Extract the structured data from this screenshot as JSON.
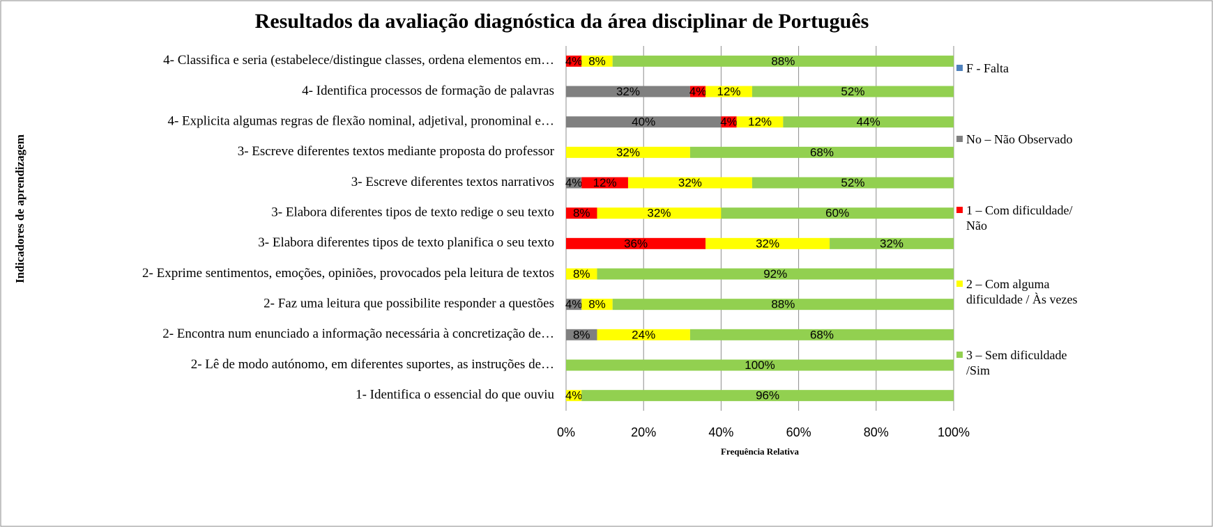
{
  "chart_data": {
    "type": "stacked-bar-horizontal",
    "title": "Resultados da avaliação diagnóstica da área disciplinar de Português",
    "x_label": "Frequência Relativa",
    "y_label": "Indicadores de aprendizagem",
    "categories": [
      "4- Classifica e seria (estabelece/distingue classes, ordena elementos em…",
      "4- Identifica processos de formação de palavras",
      "4- Explicita algumas regras de flexão nominal, adjetival, pronominal e…",
      "3- Escreve diferentes textos mediante proposta do professor",
      "3- Escreve diferentes textos narrativos",
      "3- Elabora diferentes tipos de texto redige o seu texto",
      "3- Elabora diferentes tipos de texto planifica o seu texto",
      "2- Exprime sentimentos, emoções, opiniões, provocados pela leitura de textos",
      "2- Faz uma leitura que possibilite responder a questões",
      "2- Encontra num enunciado a informação necessária à concretização de…",
      "2- Lê de modo autónomo, em diferentes suportes, as instruções de…",
      "1- Identifica o essencial do que ouviu"
    ],
    "series": [
      {
        "name": "F - Falta",
        "color": "#4f81bd",
        "values": [
          0,
          0,
          0,
          0,
          0,
          0,
          0,
          0,
          0,
          0,
          0,
          0
        ],
        "value_labels": [
          null,
          null,
          null,
          null,
          null,
          null,
          null,
          null,
          null,
          null,
          null,
          null
        ]
      },
      {
        "name": "No – Não Observado",
        "color": "#808080",
        "values": [
          0,
          32,
          40,
          0,
          4,
          0,
          0,
          0,
          4,
          8,
          0,
          0
        ],
        "value_labels": [
          null,
          "32%",
          "40%",
          null,
          "4%",
          null,
          null,
          null,
          "4%",
          "8%",
          null,
          null
        ]
      },
      {
        "name": "1 – Com dificuldade/ Não",
        "color": "#ff0000",
        "values": [
          4,
          4,
          4,
          0,
          12,
          8,
          36,
          0,
          0,
          0,
          0,
          0
        ],
        "value_labels": [
          "4%",
          "4%",
          "4%",
          null,
          "12%",
          "8%",
          "36%",
          null,
          null,
          null,
          null,
          null
        ]
      },
      {
        "name": "2 – Com alguma dificuldade / Às vezes",
        "color": "#ffff00",
        "values": [
          8,
          12,
          12,
          32,
          32,
          32,
          32,
          8,
          8,
          24,
          0,
          4
        ],
        "value_labels": [
          "8%",
          "12%",
          "12%",
          "32%",
          "32%",
          "32%",
          "32%",
          "8%",
          "8%",
          "24%",
          null,
          "4%"
        ]
      },
      {
        "name": "3 – Sem dificuldade /Sim",
        "color": "#92d050",
        "values": [
          88,
          52,
          44,
          68,
          52,
          60,
          32,
          92,
          88,
          68,
          100,
          96
        ],
        "value_labels": [
          "88%",
          "52%",
          "44%",
          "68%",
          "52%",
          "60%",
          "32%",
          "92%",
          "88%",
          "68%",
          "100%",
          "96%"
        ]
      }
    ],
    "xlim": [
      0,
      100
    ],
    "xticks": [
      {
        "value": 0,
        "label": "0%"
      },
      {
        "value": 20,
        "label": "20%"
      },
      {
        "value": 40,
        "label": "40%"
      },
      {
        "value": 60,
        "label": "60%"
      },
      {
        "value": 80,
        "label": "80%"
      },
      {
        "value": 100,
        "label": "100%"
      }
    ],
    "grid": true,
    "legend": "right"
  }
}
